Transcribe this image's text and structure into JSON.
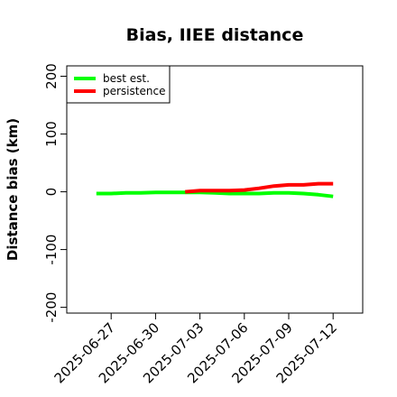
{
  "chart_data": {
    "type": "line",
    "title": "Bias, IIEE distance",
    "xlabel": "",
    "ylabel": "Distance bias (km)",
    "ylim": [
      -210,
      218
    ],
    "yticks": [
      -200,
      -100,
      0,
      100,
      200
    ],
    "xlim": [
      "2025-06-24",
      "2025-07-14"
    ],
    "xticks": [
      "2025-06-27",
      "2025-06-30",
      "2025-07-03",
      "2025-07-06",
      "2025-07-09",
      "2025-07-12"
    ],
    "grid": false,
    "legend_position": "top-left",
    "series": [
      {
        "name": "best est.",
        "color": "#00ff00",
        "x": [
          "2025-06-26",
          "2025-06-27",
          "2025-06-28",
          "2025-06-29",
          "2025-06-30",
          "2025-07-01",
          "2025-07-02",
          "2025-07-03",
          "2025-07-04",
          "2025-07-05",
          "2025-07-06",
          "2025-07-07",
          "2025-07-08",
          "2025-07-09",
          "2025-07-10",
          "2025-07-11",
          "2025-07-12"
        ],
        "values": [
          -3,
          -3,
          -2,
          -2,
          -1,
          -1,
          -1,
          -1,
          -2,
          -3,
          -3,
          -3,
          -2,
          -2,
          -3,
          -5,
          -8
        ]
      },
      {
        "name": "persistence",
        "color": "#ff0000",
        "x": [
          "2025-07-02",
          "2025-07-03",
          "2025-07-04",
          "2025-07-05",
          "2025-07-06",
          "2025-07-07",
          "2025-07-08",
          "2025-07-09",
          "2025-07-10",
          "2025-07-11",
          "2025-07-12"
        ],
        "values": [
          0,
          2,
          2,
          2,
          3,
          6,
          10,
          12,
          12,
          14,
          14
        ]
      }
    ]
  }
}
